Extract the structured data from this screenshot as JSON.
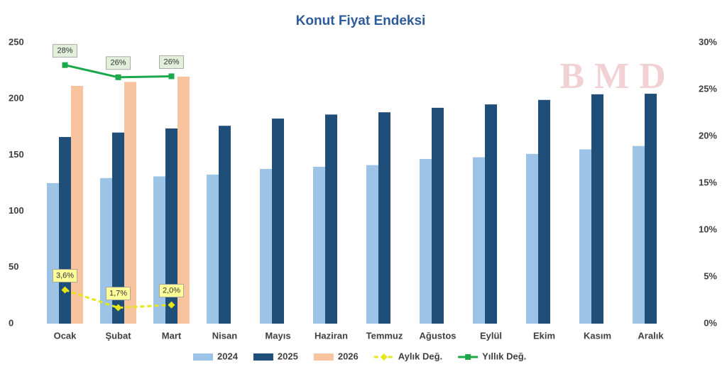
{
  "chart_data": {
    "type": "bar",
    "title": "Konut Fiyat Endeksi",
    "watermark": "BMD",
    "categories": [
      "Ocak",
      "Şubat",
      "Mart",
      "Nisan",
      "Mayıs",
      "Haziran",
      "Temmuz",
      "Ağustos",
      "Eylül",
      "Ekim",
      "Kasım",
      "Aralık"
    ],
    "series": [
      {
        "name": "2024",
        "color": "#9dc3e6",
        "values": [
          125,
          129.5,
          131,
          132.6,
          137.6,
          139.5,
          141,
          146.5,
          148,
          151,
          155,
          158
        ]
      },
      {
        "name": "2025",
        "color": "#1f4e79",
        "values": [
          166,
          170,
          173.6,
          176,
          182.4,
          186,
          188,
          192,
          195,
          199,
          204,
          204.5
        ]
      },
      {
        "name": "2026",
        "color": "#f8c49f",
        "values": [
          211.5,
          215,
          219.7,
          null,
          null,
          null,
          null,
          null,
          null,
          null,
          null,
          null
        ]
      },
      {
        "name": "Aylık Değ.",
        "type": "line",
        "axis": "y2",
        "dashed": true,
        "color": "#e6e619",
        "label_fill": "#ffff99",
        "values": [
          3.6,
          1.7,
          2.0,
          null,
          null,
          null,
          null,
          null,
          null,
          null,
          null,
          null
        ],
        "value_labels": [
          "3,6%",
          "1,7%",
          "2,0%",
          null,
          null,
          null,
          null,
          null,
          null,
          null,
          null,
          null
        ]
      },
      {
        "name": "Yıllık Değ.",
        "type": "line",
        "axis": "y2",
        "dashed": false,
        "color": "#1aa84b",
        "label_fill": "#e2efda",
        "values": [
          27.6,
          26.3,
          26.4,
          null,
          null,
          null,
          null,
          null,
          null,
          null,
          null,
          null
        ],
        "value_labels": [
          "28%",
          "26%",
          "26%",
          null,
          null,
          null,
          null,
          null,
          null,
          null,
          null,
          null
        ]
      }
    ],
    "ylim": [
      0,
      250
    ],
    "yticks": [
      0,
      50,
      100,
      150,
      200,
      250
    ],
    "y2lim": [
      0,
      30
    ],
    "y2ticks": [
      {
        "value": 0,
        "label": "0%"
      },
      {
        "value": 5,
        "label": "5%"
      },
      {
        "value": 10,
        "label": "10%"
      },
      {
        "value": 15,
        "label": "15%"
      },
      {
        "value": 20,
        "label": "20%"
      },
      {
        "value": 25,
        "label": "25%"
      },
      {
        "value": 30,
        "label": "30%"
      }
    ],
    "grid": false,
    "legend": "bottom"
  }
}
